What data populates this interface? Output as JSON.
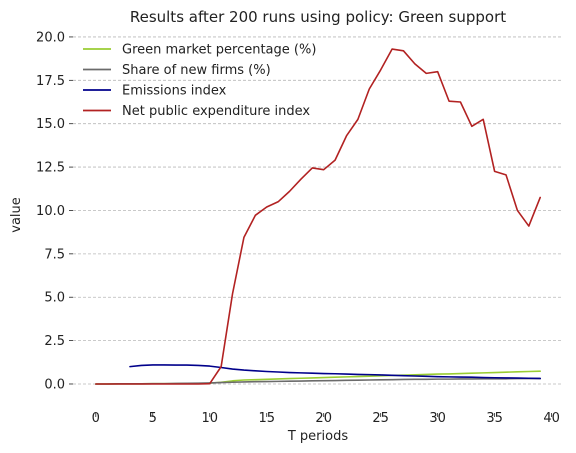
{
  "chart_data": {
    "type": "line",
    "title": "Results after 200 runs using policy: Green support",
    "xlabel": "T periods",
    "ylabel": "value",
    "xlim": [
      -2,
      41
    ],
    "ylim": [
      -0.75,
      20.4
    ],
    "xticks": [
      0,
      5,
      10,
      15,
      20,
      25,
      30,
      35,
      40
    ],
    "xtick_labels": [
      "0",
      "5",
      "10",
      "15",
      "20",
      "25",
      "30",
      "35",
      "40"
    ],
    "yticks": [
      0,
      2.5,
      5,
      7.5,
      10,
      12.5,
      15,
      17.5,
      20
    ],
    "ytick_labels": [
      "0.0",
      "2.5",
      "5.0",
      "7.5",
      "10.0",
      "12.5",
      "15.0",
      "17.5",
      "20.0"
    ],
    "grid": "horizontal",
    "legend_position": "top-left",
    "series": [
      {
        "name": "Green market percentage (%)",
        "color": "#9acd32",
        "x": [
          0,
          1,
          2,
          3,
          4,
          5,
          6,
          7,
          8,
          9,
          10,
          11,
          12,
          13,
          14,
          15,
          16,
          17,
          18,
          19,
          20,
          21,
          22,
          23,
          24,
          25,
          26,
          27,
          28,
          29,
          30,
          31,
          32,
          33,
          34,
          35,
          36,
          37,
          38,
          39
        ],
        "values": [
          0.0,
          0.0,
          0.01,
          0.01,
          0.01,
          0.02,
          0.02,
          0.02,
          0.03,
          0.04,
          0.05,
          0.1,
          0.18,
          0.23,
          0.25,
          0.27,
          0.29,
          0.31,
          0.33,
          0.35,
          0.37,
          0.39,
          0.41,
          0.43,
          0.45,
          0.47,
          0.49,
          0.51,
          0.53,
          0.55,
          0.57,
          0.58,
          0.6,
          0.62,
          0.64,
          0.66,
          0.68,
          0.7,
          0.72,
          0.74
        ]
      },
      {
        "name": "Share of new firms (%)",
        "color": "#6b6b6b",
        "x": [
          0,
          1,
          2,
          3,
          4,
          5,
          6,
          7,
          8,
          9,
          10,
          11,
          12,
          13,
          14,
          15,
          16,
          17,
          18,
          19,
          20,
          21,
          22,
          23,
          24,
          25,
          26,
          27,
          28,
          29,
          30,
          31,
          32,
          33,
          34,
          35,
          36,
          37,
          38,
          39
        ],
        "values": [
          0.0,
          0.0,
          0.01,
          0.01,
          0.01,
          0.02,
          0.02,
          0.03,
          0.04,
          0.05,
          0.06,
          0.08,
          0.1,
          0.12,
          0.13,
          0.14,
          0.15,
          0.16,
          0.17,
          0.18,
          0.19,
          0.2,
          0.21,
          0.22,
          0.23,
          0.24,
          0.25,
          0.26,
          0.27,
          0.27,
          0.28,
          0.28,
          0.29,
          0.29,
          0.3,
          0.3,
          0.3,
          0.31,
          0.31,
          0.31
        ]
      },
      {
        "name": "Emissions index",
        "color": "#00008b",
        "x": [
          3,
          4,
          5,
          6,
          7,
          8,
          9,
          10,
          11,
          12,
          13,
          14,
          15,
          16,
          17,
          18,
          19,
          20,
          21,
          22,
          23,
          24,
          25,
          26,
          27,
          28,
          29,
          30,
          31,
          32,
          33,
          34,
          35,
          36,
          37,
          38,
          39
        ],
        "values": [
          1.0,
          1.07,
          1.1,
          1.1,
          1.09,
          1.09,
          1.07,
          1.03,
          0.95,
          0.86,
          0.8,
          0.76,
          0.72,
          0.69,
          0.66,
          0.64,
          0.62,
          0.6,
          0.59,
          0.57,
          0.55,
          0.54,
          0.52,
          0.5,
          0.48,
          0.46,
          0.44,
          0.42,
          0.41,
          0.4,
          0.39,
          0.37,
          0.36,
          0.35,
          0.34,
          0.33,
          0.32
        ]
      },
      {
        "name": "Net public expenditure index",
        "color": "#b22222",
        "x": [
          0,
          1,
          2,
          3,
          4,
          5,
          6,
          7,
          8,
          9,
          10,
          11,
          12,
          13,
          14,
          15,
          16,
          17,
          18,
          19,
          20,
          21,
          22,
          23,
          24,
          25,
          26,
          27,
          28,
          29,
          30,
          31,
          32,
          33,
          34,
          35,
          36,
          37,
          38,
          39
        ],
        "values": [
          0.0,
          0.0,
          0.0,
          0.0,
          0.0,
          0.0,
          0.0,
          0.0,
          0.0,
          0.0,
          0.02,
          1.0,
          5.2,
          8.45,
          9.72,
          10.2,
          10.5,
          11.1,
          11.8,
          12.45,
          12.35,
          12.9,
          14.3,
          15.25,
          17.0,
          18.1,
          19.3,
          19.2,
          18.45,
          17.9,
          18.0,
          16.3,
          16.25,
          14.85,
          15.25,
          12.25,
          12.05,
          10.0,
          9.1,
          10.75
        ]
      }
    ]
  }
}
